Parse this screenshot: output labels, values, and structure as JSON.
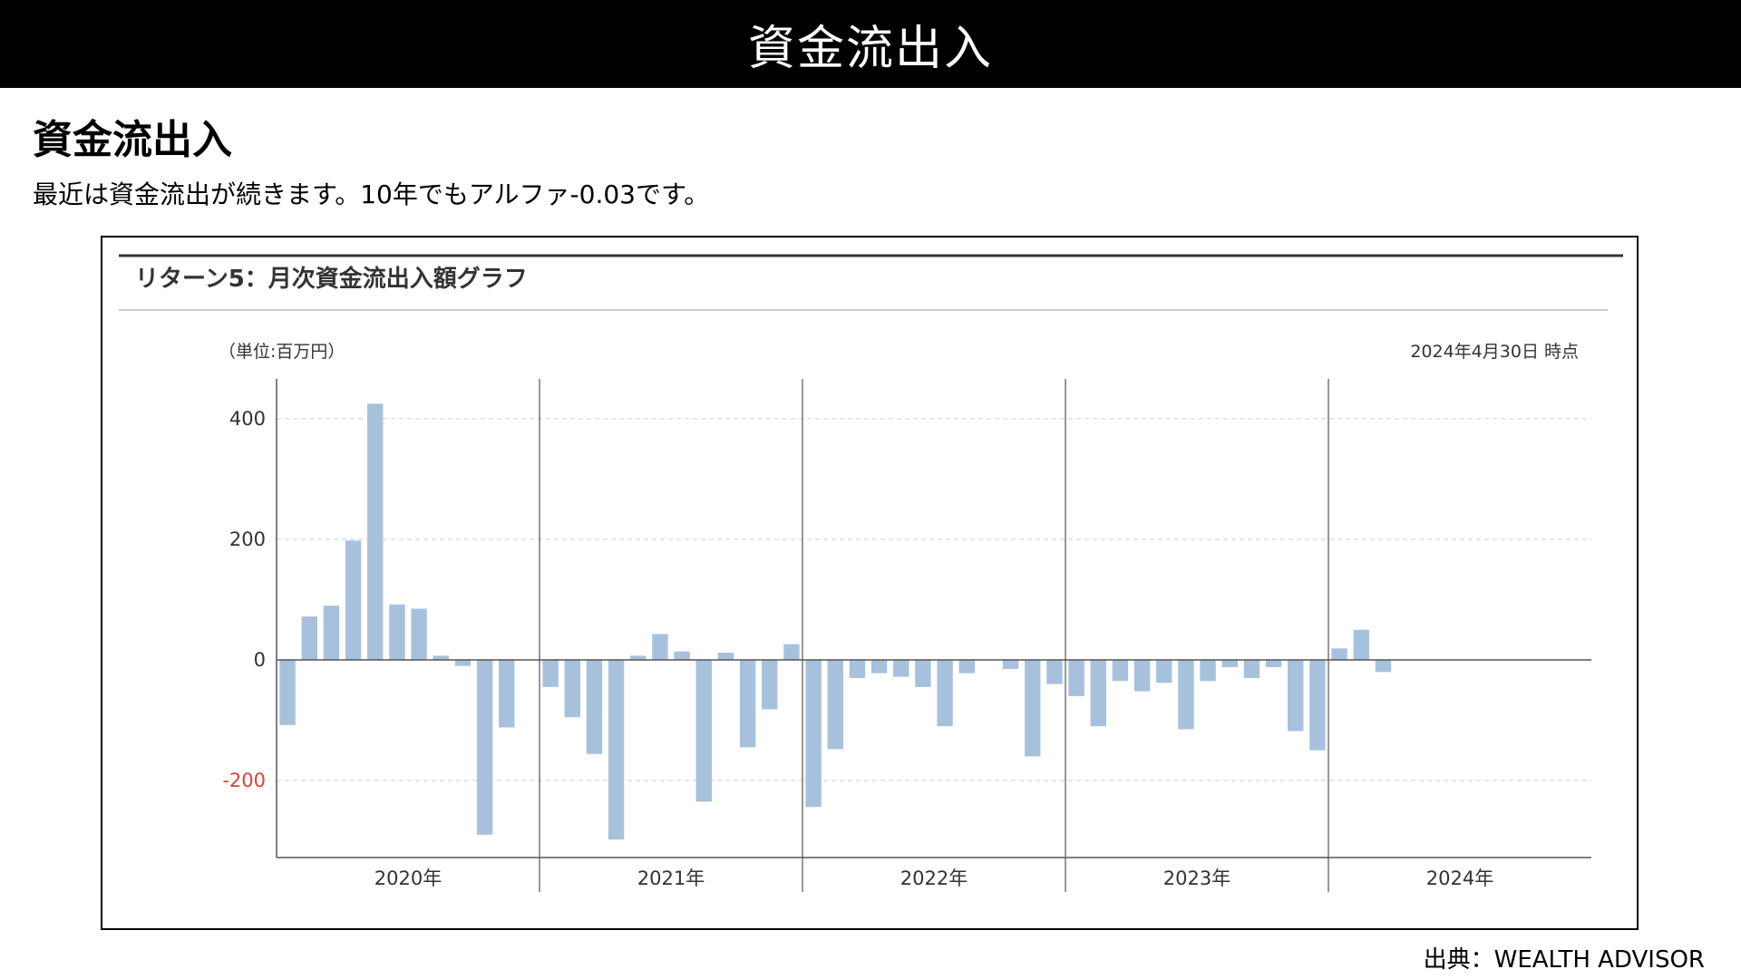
{
  "header": {
    "title": "資金流出入"
  },
  "section": {
    "heading": "資金流出入",
    "description": "最近は資金流出が続きます。10年でもアルファ-0.03です。"
  },
  "chart_panel": {
    "title": "リターン5：月次資金流出入額グラフ",
    "unit_label": "（単位:百万円）",
    "as_of": "2024年4月30日 時点"
  },
  "source": "出典：WEALTH ADVISOR",
  "colors": {
    "bar": "#a7c1dd",
    "negative_tick": "#e0403a",
    "axis": "#555555",
    "grid": "#cccccc"
  },
  "chart_data": {
    "type": "bar",
    "ylim": [
      -330,
      460
    ],
    "yticks": [
      400,
      200,
      0,
      -200
    ],
    "grid": "horizontal-dashed",
    "year_labels": [
      "2020年",
      "2021年",
      "2022年",
      "2023年",
      "2024年"
    ],
    "months_per_year": 12,
    "start_month": 1,
    "values": [
      -108,
      72,
      90,
      198,
      425,
      92,
      85,
      7,
      -10,
      -290,
      -112,
      0,
      -45,
      -95,
      -156,
      -298,
      7,
      43,
      14,
      -235,
      12,
      -145,
      -82,
      26,
      -244,
      -148,
      -30,
      -22,
      -28,
      -45,
      -110,
      -22,
      0,
      -15,
      -160,
      -40,
      -60,
      -110,
      -35,
      -52,
      -38,
      -115,
      -35,
      -12,
      -30,
      -12,
      -118,
      -150,
      19,
      50,
      -20
    ]
  }
}
